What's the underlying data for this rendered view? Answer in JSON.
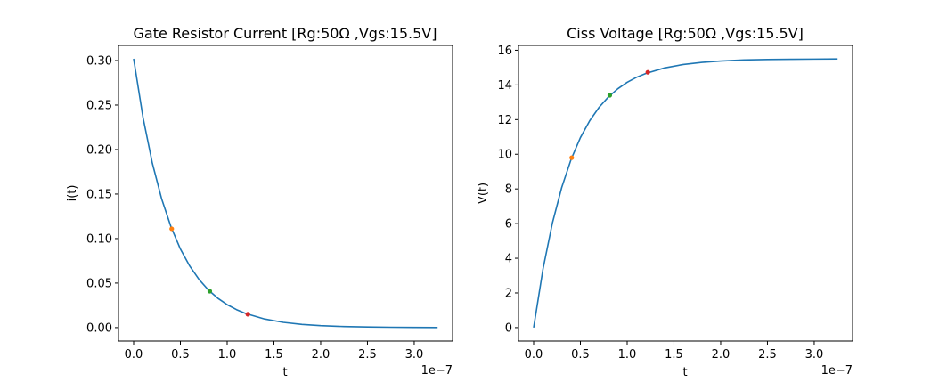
{
  "chart_data": [
    {
      "type": "line",
      "title": "Gate Resistor Current [Rg:50Ω ,Vgs:15.5V]",
      "xlabel": "t",
      "ylabel": "i(t)",
      "x_offset_label": "1e−7",
      "xlim": [
        -1.62e-08,
        3.41e-07
      ],
      "ylim": [
        -0.0151,
        0.317
      ],
      "xticks": [
        0,
        5e-08,
        1e-07,
        1.5e-07,
        2e-07,
        2.5e-07,
        3e-07
      ],
      "xtick_labels": [
        "0.0",
        "0.5",
        "1.0",
        "1.5",
        "2.0",
        "2.5",
        "3.0"
      ],
      "yticks": [
        0,
        0.05,
        0.1,
        0.15,
        0.2,
        0.25,
        0.3
      ],
      "ytick_labels": [
        "0.00",
        "0.05",
        "0.10",
        "0.15",
        "0.20",
        "0.25",
        "0.30"
      ],
      "grid": false,
      "series": [
        {
          "kind": "curve",
          "color": "#1f77b4",
          "x": [
            0,
            1e-08,
            2e-08,
            3e-08,
            4e-08,
            5e-08,
            6e-08,
            7e-08,
            8e-08,
            9e-08,
            1e-07,
            1.1e-07,
            1.2e-07,
            1.4e-07,
            1.6e-07,
            1.8e-07,
            2e-07,
            2.25e-07,
            2.5e-07,
            2.75e-07,
            3e-07,
            3.25e-07
          ],
          "y": [
            0.302,
            0.2362,
            0.1847,
            0.1444,
            0.113,
            0.0883,
            0.0691,
            0.054,
            0.0422,
            0.033,
            0.0258,
            0.0202,
            0.0158,
            0.0097,
            0.0059,
            0.0036,
            0.0022,
            0.0012,
            0.0007,
            0.0004,
            0.0002,
            0.0001
          ]
        }
      ],
      "markers": [
        {
          "x": 4.07e-08,
          "y": 0.111,
          "color": "#ff7f0e"
        },
        {
          "x": 8.14e-08,
          "y": 0.0409,
          "color": "#2ca02c"
        },
        {
          "x": 1.221e-07,
          "y": 0.015,
          "color": "#d62728"
        }
      ]
    },
    {
      "type": "line",
      "title": "Ciss Voltage [Rg:50Ω ,Vgs:15.5V]",
      "xlabel": "t",
      "ylabel": "V(t)",
      "x_offset_label": "1e−7",
      "xlim": [
        -1.62e-08,
        3.41e-07
      ],
      "ylim": [
        -0.775,
        16.28
      ],
      "xticks": [
        0,
        5e-08,
        1e-07,
        1.5e-07,
        2e-07,
        2.5e-07,
        3e-07
      ],
      "xtick_labels": [
        "0.0",
        "0.5",
        "1.0",
        "1.5",
        "2.0",
        "2.5",
        "3.0"
      ],
      "yticks": [
        0,
        2,
        4,
        6,
        8,
        10,
        12,
        14,
        16
      ],
      "ytick_labels": [
        "0",
        "2",
        "4",
        "6",
        "8",
        "10",
        "12",
        "14",
        "16"
      ],
      "grid": false,
      "series": [
        {
          "kind": "curve",
          "color": "#1f77b4",
          "x": [
            0,
            1e-08,
            2e-08,
            3e-08,
            4e-08,
            5e-08,
            6e-08,
            7e-08,
            8e-08,
            9e-08,
            1e-07,
            1.1e-07,
            1.2e-07,
            1.4e-07,
            1.6e-07,
            1.8e-07,
            2e-07,
            2.25e-07,
            2.5e-07,
            2.75e-07,
            3e-07,
            3.25e-07
          ],
          "y": [
            0,
            3.38,
            6.02,
            8.08,
            9.7,
            10.96,
            11.94,
            12.71,
            13.31,
            13.78,
            14.15,
            14.44,
            14.66,
            14.98,
            15.18,
            15.3,
            15.38,
            15.44,
            15.47,
            15.48,
            15.49,
            15.5
          ]
        }
      ],
      "markers": [
        {
          "x": 4.07e-08,
          "y": 9.8,
          "color": "#ff7f0e"
        },
        {
          "x": 8.14e-08,
          "y": 13.4,
          "color": "#2ca02c"
        },
        {
          "x": 1.221e-07,
          "y": 14.73,
          "color": "#d62728"
        }
      ]
    }
  ]
}
